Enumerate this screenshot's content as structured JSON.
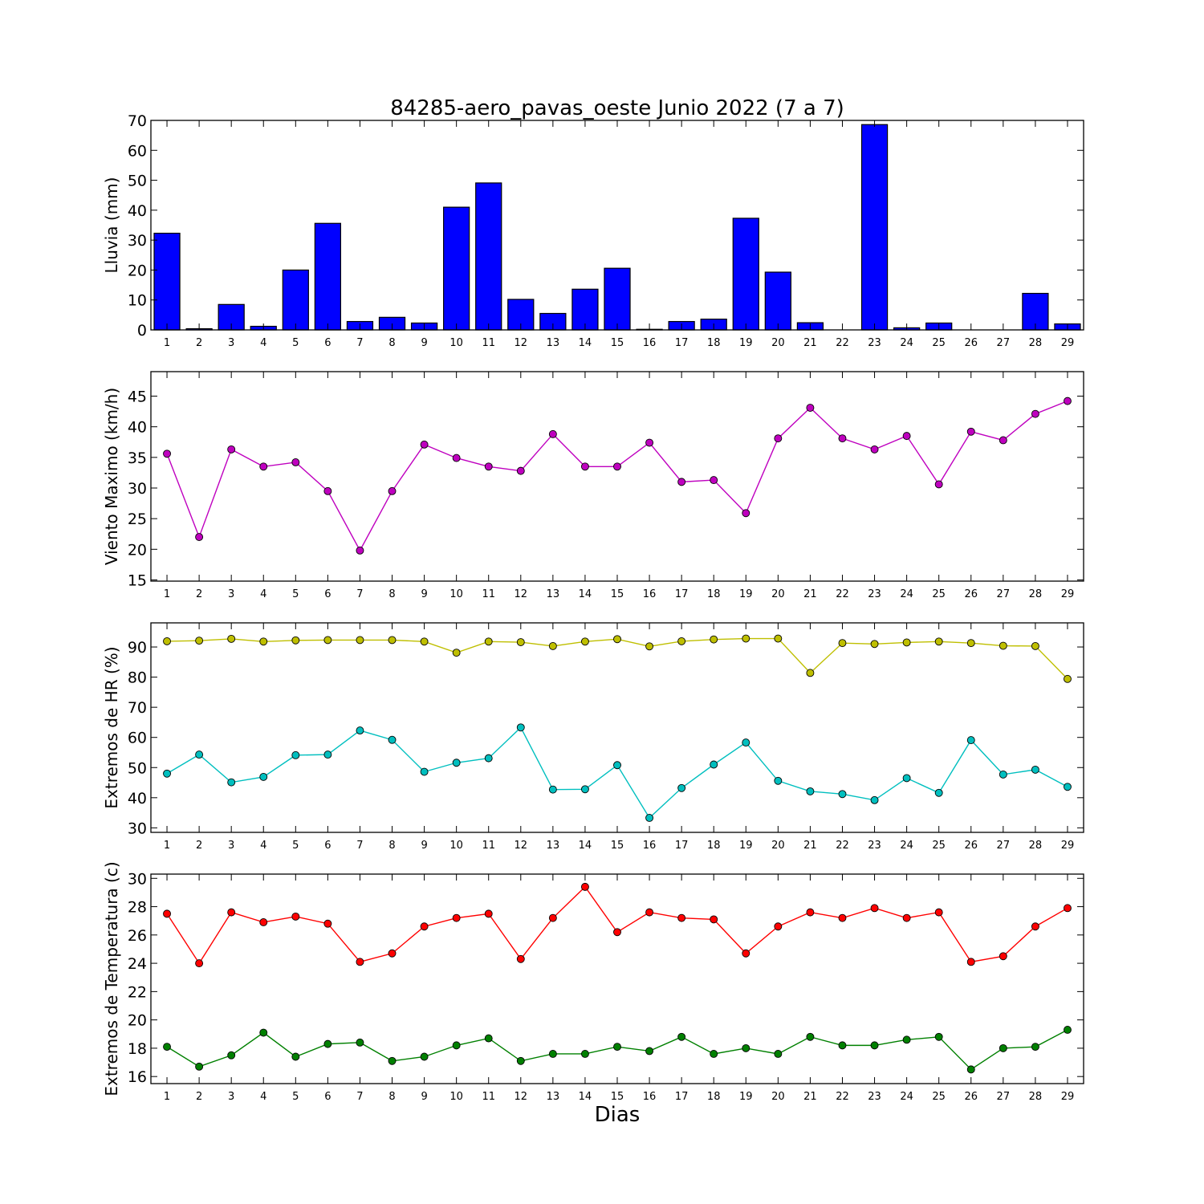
{
  "title": "84285-aero_pavas_oeste Junio 2022  (7 a 7)",
  "xlabel": "Dias",
  "days": [
    1,
    2,
    3,
    4,
    5,
    6,
    7,
    8,
    9,
    10,
    11,
    12,
    13,
    14,
    15,
    16,
    17,
    18,
    19,
    20,
    21,
    22,
    23,
    24,
    25,
    26,
    27,
    28,
    29
  ],
  "chart_data": [
    {
      "type": "bar",
      "ylabel": "Lluvia (mm)",
      "ylim": [
        0,
        70
      ],
      "yticks": [
        0,
        10,
        20,
        30,
        40,
        50,
        60,
        70
      ],
      "series": [
        {
          "color": "#0000ff",
          "values": [
            32.3,
            0.4,
            8.5,
            1.2,
            20.0,
            35.6,
            2.8,
            4.2,
            2.3,
            41.0,
            49.1,
            10.2,
            5.5,
            13.6,
            20.6,
            0.2,
            2.8,
            3.6,
            37.3,
            19.3,
            2.4,
            0,
            68.6,
            0.7,
            2.3,
            0,
            0,
            12.2,
            2.0
          ]
        }
      ]
    },
    {
      "type": "line",
      "ylabel": "Viento Maximo (km/h)",
      "ylim": [
        14.8,
        49
      ],
      "yticks": [
        15,
        20,
        25,
        30,
        35,
        40,
        45
      ],
      "series": [
        {
          "color": "#bf00bf",
          "values": [
            35.6,
            22.0,
            36.3,
            33.5,
            34.2,
            29.5,
            19.8,
            29.5,
            37.1,
            34.9,
            33.5,
            32.8,
            38.8,
            33.5,
            33.5,
            37.4,
            31.0,
            31.3,
            25.9,
            38.1,
            43.1,
            38.1,
            36.3,
            38.5,
            30.6,
            39.2,
            37.8,
            42.1,
            44.2
          ]
        }
      ]
    },
    {
      "type": "line",
      "ylabel": "Extremos de HR (%)",
      "ylim": [
        28.5,
        98
      ],
      "yticks": [
        30,
        40,
        50,
        60,
        70,
        80,
        90
      ],
      "series": [
        {
          "color": "#bfbf00",
          "values": [
            91.9,
            92.1,
            92.7,
            91.8,
            92.2,
            92.3,
            92.3,
            92.3,
            91.8,
            88.1,
            91.8,
            91.6,
            90.3,
            91.8,
            92.6,
            90.2,
            91.9,
            92.5,
            92.8,
            92.8,
            81.4,
            91.3,
            91.0,
            91.5,
            91.8,
            91.3,
            90.4,
            90.3,
            79.4
          ]
        },
        {
          "color": "#00bfbf",
          "values": [
            48.0,
            54.3,
            45.1,
            46.9,
            54.1,
            54.3,
            62.3,
            59.2,
            48.6,
            51.6,
            53.1,
            63.3,
            42.7,
            42.8,
            50.8,
            33.3,
            43.2,
            51.0,
            58.3,
            45.6,
            42.1,
            41.2,
            39.2,
            46.5,
            41.6,
            59.1,
            47.7,
            49.3,
            43.6
          ]
        }
      ]
    },
    {
      "type": "line",
      "ylabel": "Extremos de Temperatura (c)",
      "ylim": [
        15.5,
        30.3
      ],
      "yticks": [
        16,
        18,
        20,
        22,
        24,
        26,
        28,
        30
      ],
      "series": [
        {
          "color": "#ff0000",
          "values": [
            27.5,
            24.0,
            27.6,
            26.9,
            27.3,
            26.8,
            24.1,
            24.7,
            26.6,
            27.2,
            27.5,
            24.3,
            27.2,
            29.4,
            26.2,
            27.6,
            27.2,
            27.1,
            24.7,
            26.6,
            27.6,
            27.2,
            27.9,
            27.2,
            27.6,
            24.1,
            24.5,
            26.6,
            27.9
          ]
        },
        {
          "color": "#008000",
          "values": [
            18.1,
            16.7,
            17.5,
            19.1,
            17.4,
            18.3,
            18.4,
            17.1,
            17.4,
            18.2,
            18.7,
            17.1,
            17.6,
            17.6,
            18.1,
            17.8,
            18.8,
            17.6,
            18.0,
            17.6,
            18.8,
            18.2,
            18.2,
            18.6,
            18.8,
            16.5,
            18.0,
            18.1,
            19.3
          ]
        }
      ]
    }
  ]
}
